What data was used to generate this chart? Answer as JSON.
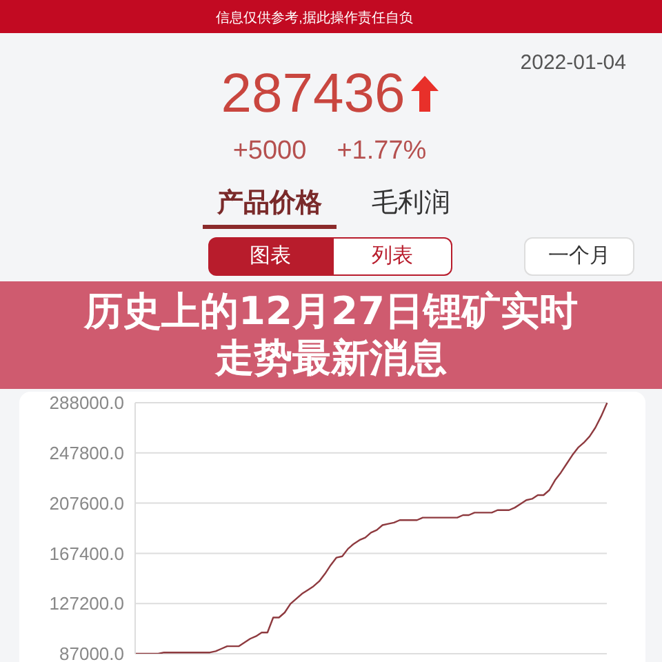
{
  "chart_data": {
    "type": "line",
    "title": "历史上的12月27日锂矿实时走势最新消息",
    "annotations": [
      "信息仅供参考,据此操作责任自负",
      "2022-01-04",
      "287436",
      "+5000",
      "+1.77%",
      "产品价格",
      "毛利润",
      "图表",
      "列表",
      "一个月"
    ],
    "categories": [
      null,
      null,
      null,
      null,
      null,
      null,
      null,
      null,
      null,
      null,
      null,
      null,
      null,
      null,
      null,
      null,
      null,
      null,
      null,
      null,
      null,
      null,
      null,
      null,
      null,
      null,
      null,
      null,
      null,
      null,
      null,
      null,
      null,
      null,
      null,
      null,
      null,
      null,
      null,
      null,
      null,
      null,
      null,
      null,
      null,
      null,
      null,
      null,
      null,
      null,
      null,
      null,
      null,
      null,
      null,
      null,
      null,
      null,
      null,
      null,
      null,
      null,
      null,
      null,
      null,
      null,
      null,
      null,
      null,
      null,
      null,
      null,
      null,
      null,
      null,
      null,
      null,
      null,
      null,
      null,
      null,
      null,
      null
    ],
    "values": [
      87000,
      87000,
      87000,
      87000,
      87000,
      88000,
      88000,
      88000,
      88000,
      88000,
      88000,
      88000,
      88000,
      88000,
      89000,
      91000,
      93000,
      93000,
      93000,
      96000,
      99000,
      101000,
      104000,
      104000,
      116000,
      116000,
      120000,
      127000,
      131000,
      135000,
      138000,
      141000,
      145000,
      151000,
      158000,
      164000,
      165000,
      171000,
      175000,
      178000,
      180000,
      184000,
      186000,
      190000,
      191000,
      192000,
      194000,
      194000,
      194000,
      194000,
      196000,
      196000,
      196000,
      196000,
      196000,
      196000,
      196000,
      198000,
      198000,
      200000,
      200000,
      200000,
      200000,
      202000,
      202000,
      202000,
      204000,
      207000,
      210000,
      211000,
      214000,
      214000,
      218000,
      226000,
      232000,
      239000,
      246000,
      252000,
      256000,
      261000,
      268000,
      277000,
      287436
    ],
    "color": "#8e3a3f",
    "ylim": [
      87000,
      288000
    ],
    "yticks": [
      {
        "value": 87000,
        "label": "87000.0"
      },
      {
        "value": 127200,
        "label": "127200.0"
      },
      {
        "value": 167400,
        "label": "167400.0"
      },
      {
        "value": 207600,
        "label": "207600.0"
      },
      {
        "value": 247800,
        "label": "247800.0"
      },
      {
        "value": 288000,
        "label": "288000.0"
      }
    ],
    "grid": "y",
    "tick_labels": "y"
  }
}
